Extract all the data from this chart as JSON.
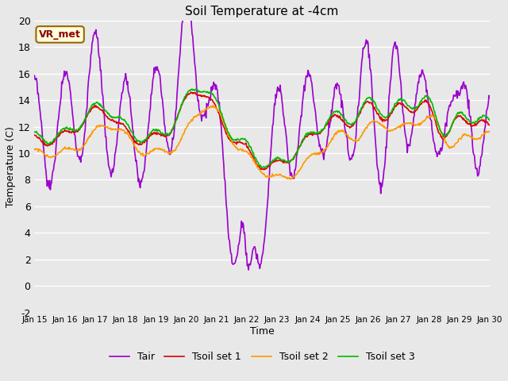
{
  "title": "Soil Temperature at -4cm",
  "xlabel": "Time",
  "ylabel": "Temperature (C)",
  "ylim": [
    -2,
    20
  ],
  "yticks": [
    -2,
    0,
    2,
    4,
    6,
    8,
    10,
    12,
    14,
    16,
    18,
    20
  ],
  "background_color": "#e8e8e8",
  "plot_bg_color": "#e8e8e8",
  "grid_color": "#ffffff",
  "annotation_text": "VR_met",
  "annotation_color": "#8B0000",
  "annotation_bg": "#ffffdd",
  "line_colors": {
    "Tair": "#9900cc",
    "Tsoil1": "#dd0000",
    "Tsoil2": "#ff9900",
    "Tsoil3": "#00bb00"
  },
  "legend_labels": [
    "Tair",
    "Tsoil set 1",
    "Tsoil set 2",
    "Tsoil set 3"
  ],
  "xticklabels": [
    "Jan 15",
    "Jan 16",
    "Jan 17",
    "Jan 18",
    "Jan 19",
    "Jan 20",
    "Jan 21",
    "Jan 22",
    "Jan 23",
    "Jan 24",
    "Jan 25",
    "Jan 26",
    "Jan 27",
    "Jan 28",
    "Jan 29",
    "Jan 30"
  ],
  "n_days": 15,
  "points_per_day": 48
}
